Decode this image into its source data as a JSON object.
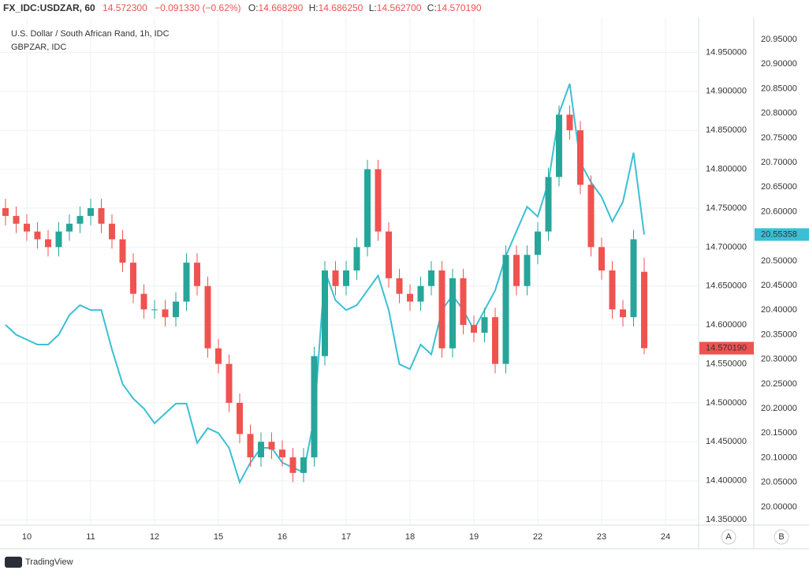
{
  "header": {
    "symbol": "FX_IDC:USDZAR, 60",
    "last": "14.572300",
    "change": "−0.091330 (−0.62%)",
    "ohlc": [
      {
        "label": "O:",
        "value": "14.668290"
      },
      {
        "label": "H:",
        "value": "14.686250"
      },
      {
        "label": "L:",
        "value": "14.562700"
      },
      {
        "label": "C:",
        "value": "14.570190"
      }
    ]
  },
  "footer": {
    "brand": "TradingView",
    "buttons": [
      "A",
      "B"
    ]
  },
  "chart_data": {
    "type": "candlestick",
    "grid": true,
    "categories": [
      null,
      null,
      "10",
      null,
      null,
      null,
      null,
      null,
      "11",
      null,
      null,
      null,
      null,
      null,
      "12",
      null,
      null,
      null,
      null,
      null,
      "15",
      null,
      null,
      null,
      null,
      null,
      "16",
      null,
      null,
      null,
      null,
      null,
      "17",
      null,
      null,
      null,
      null,
      null,
      "18",
      null,
      null,
      null,
      null,
      null,
      "19",
      null,
      null,
      null,
      null,
      null,
      "22",
      null,
      null,
      null,
      null,
      null,
      "23",
      null,
      null,
      null,
      null,
      null,
      "24"
    ],
    "ylim": [
      14.343,
      14.995
    ],
    "yticks": [
      {
        "value": 14.35,
        "label": "14.350000"
      },
      {
        "value": 14.4,
        "label": "14.400000"
      },
      {
        "value": 14.45,
        "label": "14.450000"
      },
      {
        "value": 14.5,
        "label": "14.500000"
      },
      {
        "value": 14.55,
        "label": "14.550000"
      },
      {
        "value": 14.6,
        "label": "14.600000"
      },
      {
        "value": 14.65,
        "label": "14.650000"
      },
      {
        "value": 14.7,
        "label": "14.700000"
      },
      {
        "value": 14.75,
        "label": "14.750000"
      },
      {
        "value": 14.8,
        "label": "14.800000"
      },
      {
        "value": 14.85,
        "label": "14.850000"
      },
      {
        "value": 14.9,
        "label": "14.900000"
      },
      {
        "value": 14.95,
        "label": "14.950000"
      }
    ],
    "y2lim": [
      19.963,
      20.995
    ],
    "y2ticks": [
      {
        "value": 20,
        "label": "20.00000"
      },
      {
        "value": 20.05,
        "label": "20.05000"
      },
      {
        "value": 20.1,
        "label": "20.10000"
      },
      {
        "value": 20.15,
        "label": "20.15000"
      },
      {
        "value": 20.2,
        "label": "20.20000"
      },
      {
        "value": 20.25,
        "label": "20.25000"
      },
      {
        "value": 20.3,
        "label": "20.30000"
      },
      {
        "value": 20.35,
        "label": "20.35000"
      },
      {
        "value": 20.4,
        "label": "20.40000"
      },
      {
        "value": 20.45,
        "label": "20.45000"
      },
      {
        "value": 20.5,
        "label": "20.50000"
      },
      {
        "value": 20.55,
        "label": "20.55000"
      },
      {
        "value": 20.6,
        "label": "20.60000"
      },
      {
        "value": 20.65,
        "label": "20.65000"
      },
      {
        "value": 20.7,
        "label": "20.70000"
      },
      {
        "value": 20.75,
        "label": "20.75000"
      },
      {
        "value": 20.8,
        "label": "20.80000"
      },
      {
        "value": 20.85,
        "label": "20.85000"
      },
      {
        "value": 20.9,
        "label": "20.90000"
      },
      {
        "value": 20.95,
        "label": "20.95000"
      }
    ],
    "series": [
      {
        "name": "U.S. Dollar / South African Rand, 1h, IDC",
        "type": "candlestick",
        "up_color": "#26a69a",
        "down_color": "#ef5350",
        "last_label": "14.570190",
        "open": [
          14.75,
          14.74,
          14.73,
          14.72,
          14.71,
          14.7,
          14.72,
          14.73,
          14.74,
          14.75,
          14.73,
          14.71,
          14.68,
          14.64,
          14.62,
          14.62,
          14.61,
          14.63,
          14.68,
          14.65,
          14.57,
          14.55,
          14.5,
          14.46,
          14.43,
          14.45,
          14.44,
          14.43,
          14.41,
          14.43,
          14.56,
          14.67,
          14.65,
          14.67,
          14.7,
          14.8,
          14.72,
          14.66,
          14.64,
          14.63,
          14.65,
          14.67,
          14.57,
          14.66,
          14.6,
          14.59,
          14.61,
          14.55,
          14.69,
          14.65,
          14.69,
          14.72,
          14.79,
          14.87,
          14.85,
          14.78,
          14.7,
          14.67,
          14.62,
          14.61,
          14.66829,
          null,
          null
        ],
        "high": [
          14.762,
          14.752,
          14.742,
          14.732,
          14.722,
          14.732,
          14.742,
          14.752,
          14.762,
          14.762,
          14.742,
          14.722,
          14.692,
          14.652,
          14.632,
          14.632,
          14.642,
          14.692,
          14.692,
          14.662,
          14.582,
          14.562,
          14.512,
          14.472,
          14.462,
          14.462,
          14.452,
          14.442,
          14.442,
          14.572,
          14.682,
          14.682,
          14.682,
          14.712,
          14.812,
          14.812,
          14.732,
          14.672,
          14.652,
          14.662,
          14.682,
          14.682,
          14.672,
          14.672,
          14.612,
          14.622,
          14.622,
          14.702,
          14.702,
          14.702,
          14.732,
          14.802,
          14.882,
          14.882,
          14.862,
          14.792,
          14.712,
          14.682,
          14.632,
          14.722,
          14.68625,
          null,
          null
        ],
        "low": [
          14.728,
          14.718,
          14.708,
          14.698,
          14.688,
          14.688,
          14.708,
          14.718,
          14.728,
          14.718,
          14.698,
          14.668,
          14.628,
          14.608,
          14.608,
          14.598,
          14.598,
          14.618,
          14.638,
          14.558,
          14.538,
          14.488,
          14.448,
          14.418,
          14.418,
          14.428,
          14.418,
          14.398,
          14.398,
          14.418,
          14.548,
          14.638,
          14.638,
          14.658,
          14.688,
          14.708,
          14.648,
          14.628,
          14.618,
          14.618,
          14.638,
          14.558,
          14.558,
          14.588,
          14.578,
          14.578,
          14.538,
          14.538,
          14.638,
          14.638,
          14.678,
          14.708,
          14.778,
          14.838,
          14.768,
          14.688,
          14.658,
          14.608,
          14.598,
          14.598,
          14.5627,
          null,
          null
        ],
        "close": [
          14.74,
          14.73,
          14.72,
          14.71,
          14.7,
          14.72,
          14.73,
          14.74,
          14.75,
          14.73,
          14.71,
          14.68,
          14.64,
          14.62,
          14.62,
          14.61,
          14.63,
          14.68,
          14.65,
          14.57,
          14.55,
          14.5,
          14.46,
          14.43,
          14.45,
          14.44,
          14.43,
          14.41,
          14.43,
          14.56,
          14.67,
          14.65,
          14.67,
          14.7,
          14.8,
          14.72,
          14.66,
          14.64,
          14.63,
          14.65,
          14.67,
          14.57,
          14.66,
          14.6,
          14.59,
          14.61,
          14.55,
          14.69,
          14.65,
          14.69,
          14.72,
          14.79,
          14.87,
          14.85,
          14.78,
          14.7,
          14.67,
          14.62,
          14.61,
          14.71,
          14.57019,
          null,
          null
        ]
      },
      {
        "name": "GBPZAR, IDC",
        "type": "line",
        "axis": "y2",
        "color": "#3cbfd4",
        "last_label": "20.55358",
        "values": [
          20.37,
          20.35,
          20.34,
          20.33,
          20.33,
          20.35,
          20.39,
          20.41,
          20.4,
          20.4,
          20.32,
          20.25,
          20.22,
          20.2,
          20.17,
          20.19,
          20.21,
          20.21,
          20.13,
          20.16,
          20.15,
          20.12,
          20.05,
          20.09,
          20.12,
          20.12,
          20.09,
          20.08,
          20.07,
          20.18,
          20.48,
          20.42,
          20.4,
          20.41,
          20.44,
          20.47,
          20.4,
          20.29,
          20.28,
          20.33,
          20.31,
          20.4,
          20.43,
          20.4,
          20.36,
          20.4,
          20.44,
          20.51,
          20.56,
          20.61,
          20.59,
          20.66,
          20.8,
          20.86,
          20.7,
          20.66,
          20.63,
          20.58,
          20.62,
          20.72,
          20.55358,
          null,
          null
        ]
      }
    ]
  }
}
